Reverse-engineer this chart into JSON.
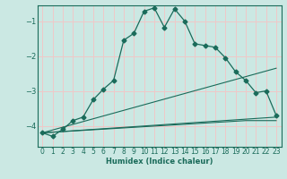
{
  "xlabel": "Humidex (Indice chaleur)",
  "background_color": "#cbe8e3",
  "grid_color": "#f0c8c8",
  "line_color": "#1a6b5a",
  "xlim": [
    -0.5,
    23.5
  ],
  "ylim": [
    -4.6,
    -0.55
  ],
  "yticks": [
    -4,
    -3,
    -2,
    -1
  ],
  "xticks": [
    0,
    1,
    2,
    3,
    4,
    5,
    6,
    7,
    8,
    9,
    10,
    11,
    12,
    13,
    14,
    15,
    16,
    17,
    18,
    19,
    20,
    21,
    22,
    23
  ],
  "main_x": [
    0,
    1,
    2,
    3,
    4,
    5,
    6,
    7,
    8,
    9,
    10,
    11,
    12,
    13,
    14,
    15,
    16,
    17,
    18,
    19,
    20,
    21,
    22,
    23
  ],
  "main_y": [
    -4.2,
    -4.3,
    -4.1,
    -3.85,
    -3.75,
    -3.25,
    -2.95,
    -2.7,
    -1.55,
    -1.35,
    -0.72,
    -0.62,
    -1.18,
    -0.65,
    -1.0,
    -1.65,
    -1.7,
    -1.75,
    -2.05,
    -2.45,
    -2.7,
    -3.05,
    -3.0,
    -3.7
  ],
  "line2_x": [
    0,
    23
  ],
  "line2_y": [
    -4.2,
    -2.35
  ],
  "line3_x": [
    0,
    20,
    23
  ],
  "line3_y": [
    -4.2,
    -3.85,
    -3.85
  ],
  "line4_x": [
    0,
    23
  ],
  "line4_y": [
    -4.2,
    -3.75
  ]
}
